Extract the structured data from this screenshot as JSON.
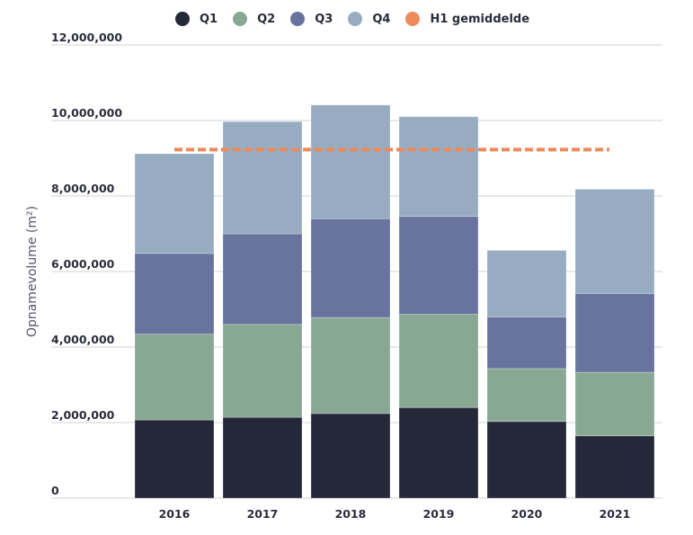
{
  "chart_data": {
    "type": "bar",
    "stacked": true,
    "title": "",
    "xlabel": "",
    "ylabel": "Opnamevolume (m²)",
    "ylim": [
      0,
      12000000
    ],
    "yticks": [
      0,
      2000000,
      4000000,
      6000000,
      8000000,
      10000000,
      12000000
    ],
    "ytick_labels": [
      "0",
      "2,000,000",
      "4,000,000",
      "6,000,000",
      "8,000,000",
      "10,000,000",
      "12,000,000"
    ],
    "grid": true,
    "legend_position": "top-center",
    "categories": [
      "2016",
      "2017",
      "2018",
      "2019",
      "2020",
      "2021"
    ],
    "series": [
      {
        "name": "Q1",
        "color": "#252839",
        "values": [
          2070000,
          2140000,
          2240000,
          2400000,
          2030000,
          1650000
        ]
      },
      {
        "name": "Q2",
        "color": "#89a894",
        "values": [
          2270000,
          2460000,
          2540000,
          2470000,
          1400000,
          1680000
        ]
      },
      {
        "name": "Q3",
        "color": "#68749e",
        "values": [
          2140000,
          2400000,
          2620000,
          2590000,
          1370000,
          2090000
        ]
      },
      {
        "name": "Q4",
        "color": "#97acc0",
        "values": [
          2640000,
          2970000,
          3010000,
          2640000,
          1760000,
          2760000
        ]
      }
    ],
    "reference_line": {
      "name": "H1 gemiddelde",
      "color": "#ec8a5c",
      "value": 9230000,
      "style": "dashed",
      "from_category": "2016",
      "to_category": "2021"
    }
  },
  "legend": [
    {
      "label": "Q1",
      "color": "#252839"
    },
    {
      "label": "Q2",
      "color": "#89a894"
    },
    {
      "label": "Q3",
      "color": "#68749e"
    },
    {
      "label": "Q4",
      "color": "#97acc0"
    },
    {
      "label": "H1 gemiddelde",
      "color": "#ec8a5c"
    }
  ]
}
